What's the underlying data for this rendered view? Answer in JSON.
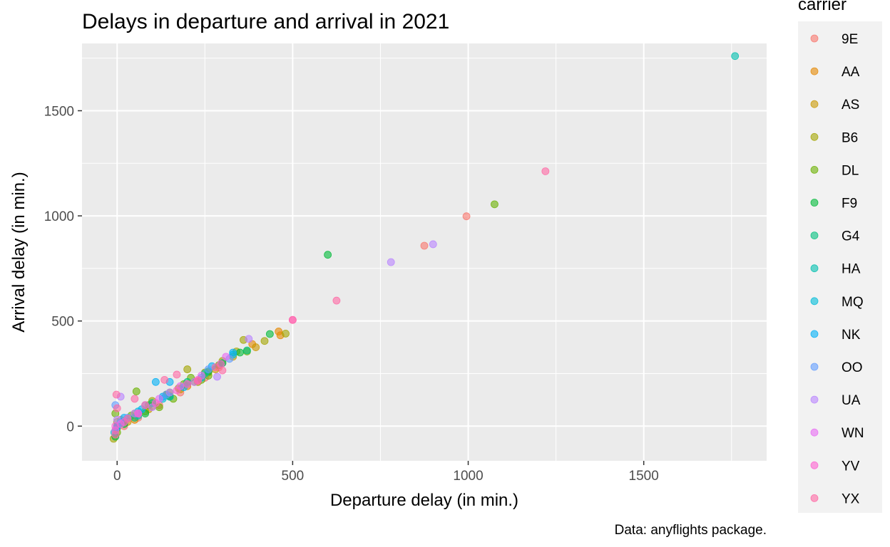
{
  "chart_data": {
    "type": "scatter",
    "title": "Delays in departure and arrival in 2021",
    "xlabel": "Departure delay (in min.)",
    "ylabel": "Arrival delay (in min.)",
    "caption": "Data: anyflights package.",
    "xlim": [
      -100,
      1850
    ],
    "ylim": [
      -165,
      1820
    ],
    "x_ticks": [
      0,
      500,
      1000,
      1500
    ],
    "y_ticks": [
      0,
      500,
      1000,
      1500
    ],
    "grid": true,
    "legend": {
      "title": "carrier",
      "position": "right"
    },
    "series": [
      {
        "name": "9E",
        "color": "#F8766D",
        "points": [
          [
            995,
            998
          ],
          [
            875,
            858
          ],
          [
            290,
            280
          ],
          [
            120,
            100
          ],
          [
            60,
            40
          ],
          [
            20,
            0
          ],
          [
            250,
            230
          ],
          [
            180,
            160
          ],
          [
            10,
            30
          ],
          [
            150,
            145
          ]
        ]
      },
      {
        "name": "AA",
        "color": "#E58700",
        "points": [
          [
            460,
            450
          ],
          [
            465,
            432
          ],
          [
            385,
            390
          ],
          [
            300,
            300
          ],
          [
            200,
            190
          ],
          [
            100,
            95
          ],
          [
            50,
            30
          ],
          [
            0,
            -10
          ],
          [
            140,
            150
          ],
          [
            260,
            255
          ]
        ]
      },
      {
        "name": "AS",
        "color": "#C99800",
        "points": [
          [
            395,
            375
          ],
          [
            330,
            330
          ],
          [
            280,
            270
          ],
          [
            180,
            175
          ],
          [
            90,
            80
          ],
          [
            30,
            20
          ],
          [
            -5,
            -20
          ],
          [
            220,
            210
          ]
        ]
      },
      {
        "name": "B6",
        "color": "#A3A500",
        "points": [
          [
            480,
            440
          ],
          [
            360,
            410
          ],
          [
            340,
            355
          ],
          [
            300,
            310
          ],
          [
            250,
            255
          ],
          [
            200,
            270
          ],
          [
            150,
            160
          ],
          [
            100,
            120
          ],
          [
            50,
            60
          ],
          [
            0,
            20
          ],
          [
            -10,
            -60
          ],
          [
            80,
            70
          ],
          [
            230,
            210
          ],
          [
            175,
            180
          ],
          [
            420,
            405
          ]
        ]
      },
      {
        "name": "DL",
        "color": "#6BB100",
        "points": [
          [
            1075,
            1055
          ],
          [
            370,
            355
          ],
          [
            290,
            290
          ],
          [
            240,
            220
          ],
          [
            190,
            200
          ],
          [
            140,
            150
          ],
          [
            90,
            100
          ],
          [
            40,
            50
          ],
          [
            0,
            -30
          ],
          [
            -5,
            60
          ],
          [
            55,
            165
          ],
          [
            120,
            90
          ],
          [
            210,
            230
          ],
          [
            260,
            240
          ],
          [
            160,
            130
          ]
        ]
      },
      {
        "name": "F9",
        "color": "#00BA38",
        "points": [
          [
            600,
            815
          ],
          [
            435,
            438
          ],
          [
            350,
            350
          ],
          [
            260,
            260
          ],
          [
            150,
            140
          ],
          [
            80,
            60
          ],
          [
            20,
            10
          ],
          [
            -5,
            -50
          ]
        ]
      },
      {
        "name": "G4",
        "color": "#00BF7D",
        "points": [
          [
            370,
            360
          ],
          [
            300,
            300
          ],
          [
            200,
            210
          ],
          [
            100,
            110
          ],
          [
            50,
            40
          ],
          [
            0,
            0
          ]
        ]
      },
      {
        "name": "HA",
        "color": "#00C0AF",
        "points": [
          [
            1760,
            1760
          ],
          [
            250,
            250
          ],
          [
            150,
            140
          ],
          [
            60,
            50
          ]
        ]
      },
      {
        "name": "MQ",
        "color": "#00BCD8",
        "points": [
          [
            330,
            340
          ],
          [
            240,
            230
          ],
          [
            130,
            130
          ],
          [
            60,
            70
          ],
          [
            10,
            20
          ],
          [
            -8,
            -30
          ]
        ]
      },
      {
        "name": "NK",
        "color": "#00B0F6",
        "points": [
          [
            330,
            350
          ],
          [
            270,
            285
          ],
          [
            190,
            185
          ],
          [
            150,
            210
          ],
          [
            110,
            210
          ],
          [
            70,
            80
          ],
          [
            20,
            40
          ],
          [
            0,
            -5
          ],
          [
            130,
            140
          ]
        ]
      },
      {
        "name": "OO",
        "color": "#619CFF",
        "points": [
          [
            320,
            320
          ],
          [
            260,
            270
          ],
          [
            200,
            200
          ],
          [
            140,
            150
          ],
          [
            80,
            100
          ],
          [
            30,
            40
          ],
          [
            -5,
            100
          ]
        ]
      },
      {
        "name": "UA",
        "color": "#B983FF",
        "points": [
          [
            900,
            865
          ],
          [
            780,
            780
          ],
          [
            375,
            415
          ],
          [
            285,
            235
          ],
          [
            220,
            210
          ],
          [
            150,
            160
          ],
          [
            100,
            90
          ],
          [
            50,
            60
          ],
          [
            0,
            30
          ],
          [
            10,
            140
          ]
        ]
      },
      {
        "name": "WN",
        "color": "#E76BF3",
        "points": [
          [
            310,
            330
          ],
          [
            240,
            240
          ],
          [
            180,
            190
          ],
          [
            120,
            130
          ],
          [
            60,
            60
          ],
          [
            10,
            10
          ],
          [
            -5,
            -20
          ]
        ]
      },
      {
        "name": "YV",
        "color": "#FD61D1",
        "points": [
          [
            500,
            505
          ],
          [
            295,
            295
          ],
          [
            230,
            220
          ],
          [
            170,
            170
          ],
          [
            110,
            110
          ],
          [
            60,
            60
          ],
          [
            20,
            20
          ],
          [
            -5,
            0
          ]
        ]
      },
      {
        "name": "YX",
        "color": "#FF67A4",
        "points": [
          [
            1220,
            1212
          ],
          [
            625,
            597
          ],
          [
            500,
            505
          ],
          [
            300,
            265
          ],
          [
            170,
            245
          ],
          [
            135,
            220
          ],
          [
            80,
            100
          ],
          [
            30,
            35
          ],
          [
            -2,
            150
          ],
          [
            0,
            85
          ],
          [
            -5,
            -40
          ],
          [
            280,
            280
          ],
          [
            230,
            215
          ],
          [
            200,
            200
          ],
          [
            50,
            130
          ]
        ]
      }
    ]
  }
}
